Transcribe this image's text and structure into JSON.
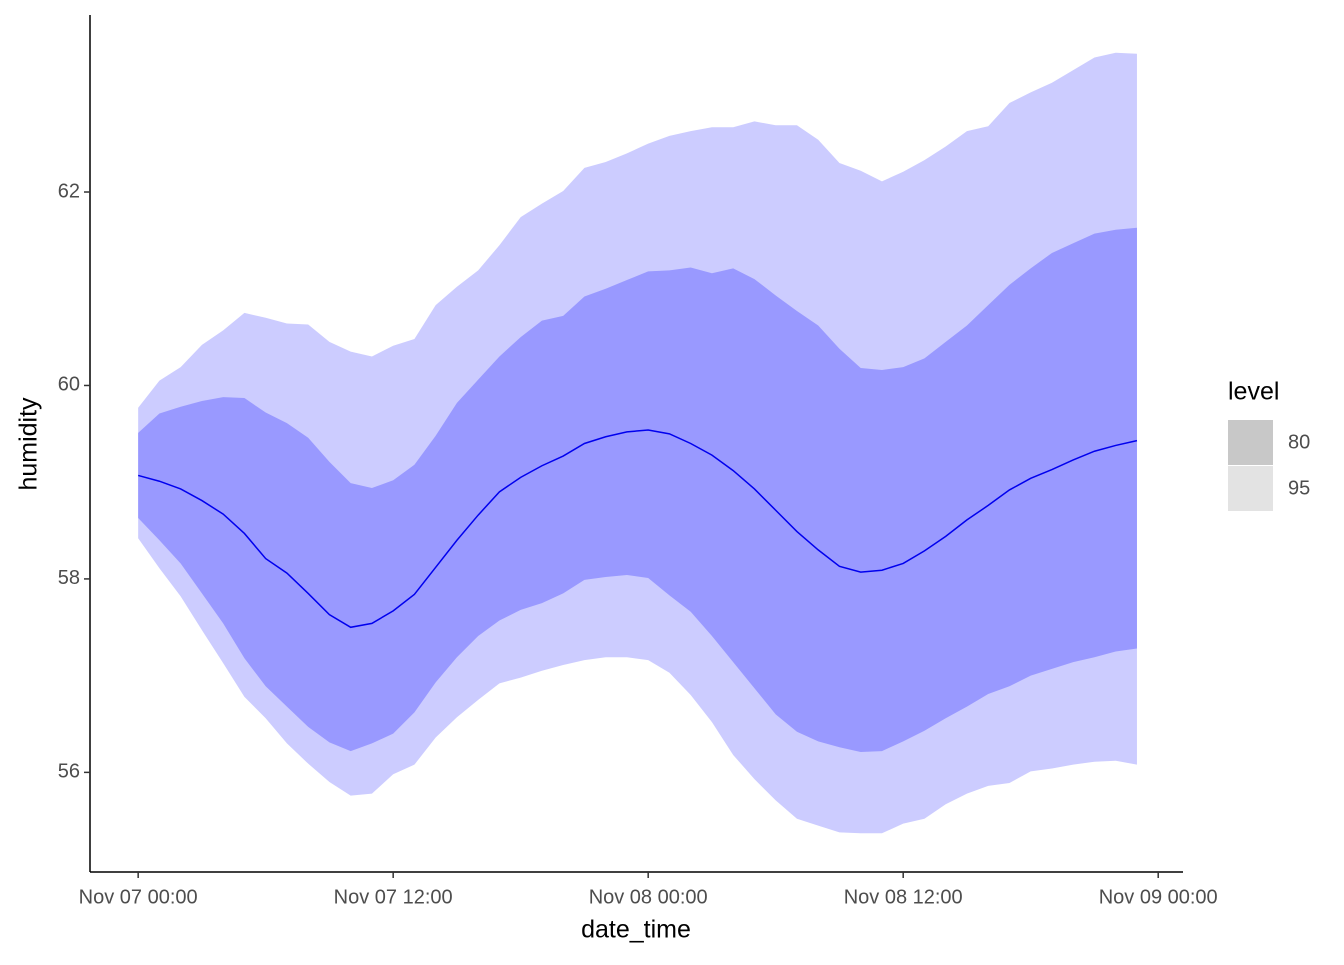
{
  "chart_data": {
    "type": "band",
    "x_label": "date_time",
    "y_label": "humidity",
    "legend_title": "level",
    "x": [
      "Nov 07 00:00",
      "Nov 07 01:00",
      "Nov 07 02:00",
      "Nov 07 03:00",
      "Nov 07 04:00",
      "Nov 07 05:00",
      "Nov 07 06:00",
      "Nov 07 07:00",
      "Nov 07 08:00",
      "Nov 07 09:00",
      "Nov 07 10:00",
      "Nov 07 11:00",
      "Nov 07 12:00",
      "Nov 07 13:00",
      "Nov 07 14:00",
      "Nov 07 15:00",
      "Nov 07 16:00",
      "Nov 07 17:00",
      "Nov 07 18:00",
      "Nov 07 19:00",
      "Nov 07 20:00",
      "Nov 07 21:00",
      "Nov 07 22:00",
      "Nov 07 23:00",
      "Nov 08 00:00",
      "Nov 08 01:00",
      "Nov 08 02:00",
      "Nov 08 03:00",
      "Nov 08 04:00",
      "Nov 08 05:00",
      "Nov 08 06:00",
      "Nov 08 07:00",
      "Nov 08 08:00",
      "Nov 08 09:00",
      "Nov 08 10:00",
      "Nov 08 11:00",
      "Nov 08 12:00",
      "Nov 08 13:00",
      "Nov 08 14:00",
      "Nov 08 15:00",
      "Nov 08 16:00",
      "Nov 08 17:00",
      "Nov 08 18:00",
      "Nov 08 19:00",
      "Nov 08 20:00",
      "Nov 08 21:00",
      "Nov 08 22:00",
      "Nov 08 23:00"
    ],
    "series": [
      {
        "name": "95",
        "color": "#ccccff",
        "legend_color": "#e3e3e3",
        "upper": [
          59.77,
          60.05,
          60.19,
          60.42,
          60.57,
          60.75,
          60.7,
          60.64,
          60.63,
          60.45,
          60.35,
          60.3,
          60.41,
          60.48,
          60.83,
          61.02,
          61.19,
          61.45,
          61.74,
          61.88,
          62.01,
          62.25,
          62.31,
          62.4,
          62.5,
          62.58,
          62.63,
          62.67,
          62.67,
          62.73,
          62.69,
          62.69,
          62.54,
          62.3,
          62.22,
          62.11,
          62.21,
          62.33,
          62.47,
          62.63,
          62.68,
          62.92,
          63.03,
          63.13,
          63.26,
          63.39,
          63.44,
          63.43
        ],
        "lower": [
          58.42,
          58.11,
          57.82,
          57.47,
          57.13,
          56.78,
          56.56,
          56.3,
          56.09,
          55.9,
          55.76,
          55.78,
          55.98,
          56.08,
          56.36,
          56.57,
          56.75,
          56.92,
          56.98,
          57.05,
          57.11,
          57.16,
          57.19,
          57.19,
          57.16,
          57.03,
          56.8,
          56.52,
          56.18,
          55.93,
          55.71,
          55.52,
          55.45,
          55.38,
          55.37,
          55.37,
          55.47,
          55.52,
          55.67,
          55.78,
          55.86,
          55.89,
          56.01,
          56.04,
          56.08,
          56.11,
          56.12,
          56.08
        ]
      },
      {
        "name": "80",
        "color": "#9999ff",
        "legend_color": "#c8c8c8",
        "upper": [
          59.51,
          59.71,
          59.78,
          59.84,
          59.88,
          59.87,
          59.72,
          59.61,
          59.46,
          59.21,
          58.99,
          58.94,
          59.02,
          59.18,
          59.48,
          59.82,
          60.06,
          60.3,
          60.5,
          60.67,
          60.72,
          60.92,
          61.0,
          61.09,
          61.18,
          61.19,
          61.22,
          61.16,
          61.21,
          61.1,
          60.93,
          60.77,
          60.62,
          60.38,
          60.18,
          60.16,
          60.19,
          60.28,
          60.45,
          60.62,
          60.83,
          61.04,
          61.21,
          61.37,
          61.47,
          61.57,
          61.61,
          61.63
        ],
        "lower": [
          58.63,
          58.4,
          58.16,
          57.85,
          57.54,
          57.18,
          56.89,
          56.68,
          56.47,
          56.31,
          56.22,
          56.3,
          56.4,
          56.62,
          56.93,
          57.19,
          57.41,
          57.57,
          57.68,
          57.75,
          57.85,
          57.99,
          58.02,
          58.04,
          58.01,
          57.83,
          57.66,
          57.41,
          57.14,
          56.87,
          56.6,
          56.42,
          56.32,
          56.26,
          56.21,
          56.22,
          56.32,
          56.43,
          56.56,
          56.68,
          56.81,
          56.89,
          57.0,
          57.07,
          57.14,
          57.19,
          57.25,
          57.28
        ]
      }
    ],
    "line": {
      "color": "#0000ee",
      "values": [
        59.07,
        59.01,
        58.93,
        58.81,
        58.67,
        58.47,
        58.21,
        58.06,
        57.85,
        57.63,
        57.5,
        57.54,
        57.67,
        57.84,
        58.12,
        58.4,
        58.66,
        58.9,
        59.05,
        59.17,
        59.27,
        59.4,
        59.47,
        59.52,
        59.54,
        59.5,
        59.4,
        59.28,
        59.12,
        58.93,
        58.71,
        58.49,
        58.3,
        58.13,
        58.07,
        58.09,
        58.16,
        58.29,
        58.44,
        58.61,
        58.76,
        58.92,
        59.04,
        59.13,
        59.23,
        59.32,
        59.38,
        59.43
      ]
    },
    "xlim": [
      "Nov 06 21:44",
      "Nov 09 01:10"
    ],
    "xticks": [
      "Nov 07 00:00",
      "Nov 07 12:00",
      "Nov 08 00:00",
      "Nov 08 12:00",
      "Nov 09 00:00"
    ],
    "ylim": [
      54.97,
      63.83
    ],
    "yticks": [
      56,
      58,
      60,
      62
    ],
    "grid": false
  }
}
